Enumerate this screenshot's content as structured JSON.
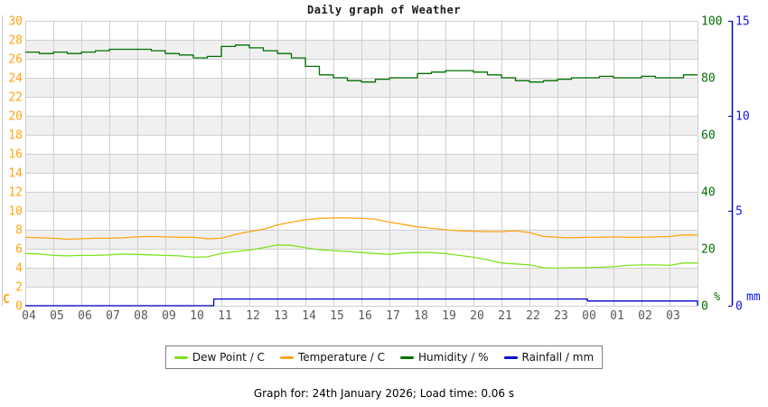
{
  "page": {
    "title": "Daily graph of Weather",
    "footer": "Graph for: 24th January 2026; Load time: 0.06 s"
  },
  "colors": {
    "background": "#ffffff",
    "grid": "#cfcfcf",
    "band": "#f0f0f0",
    "axis_left_labels": "#ffa513",
    "axis_right_labels": "#006f00",
    "axis_far_right_labels": "#1515e8",
    "x_labels": "#5a5a5a",
    "title_text": "#1a1a1a",
    "legend_border": "#7f7f7f",
    "left_edge_line": "#c8c8c8",
    "dew_point": "#7fe21f",
    "temperature": "#ffa513",
    "humidity": "#006f00",
    "rainfall": "#0000cc"
  },
  "chart_data": {
    "type": "line",
    "title": "Daily graph of Weather",
    "footer": "Graph for: 24th January 2026; Load time: 0.06 s",
    "legend_position": "bottom",
    "grid": true,
    "x_axis": {
      "hours": 24,
      "start_label": "04",
      "tick_labels": [
        "04",
        "05",
        "06",
        "07",
        "08",
        "09",
        "10",
        "11",
        "12",
        "13",
        "14",
        "15",
        "16",
        "17",
        "18",
        "19",
        "20",
        "21",
        "22",
        "23",
        "00",
        "01",
        "02",
        "03"
      ]
    },
    "axes": {
      "temperature": {
        "side": "left",
        "unit": "C",
        "min": 0,
        "max": 30,
        "tick_step": 2,
        "label_color": "#ffa513"
      },
      "humidity": {
        "side": "right",
        "unit": "%",
        "min": 0,
        "max": 100,
        "tick_step": 20,
        "label_color": "#006f00"
      },
      "rainfall": {
        "side": "far-right",
        "unit": "mm",
        "min": 0,
        "max": 15,
        "tick_step": 5,
        "label_color": "#1515e8",
        "axis_line_color": "#0000cc"
      }
    },
    "shaded_bands_temperature": [
      [
        2,
        4
      ],
      [
        6,
        8
      ],
      [
        10,
        12
      ],
      [
        14,
        16
      ],
      [
        18,
        20
      ],
      [
        22,
        24
      ],
      [
        26,
        28
      ]
    ],
    "series": [
      {
        "name": "Dew Point / C",
        "axis": "temperature",
        "color": "#7fe21f",
        "step": false,
        "x_step_hours": 0.5,
        "values": [
          5.5,
          5.45,
          5.3,
          5.25,
          5.3,
          5.3,
          5.35,
          5.45,
          5.4,
          5.35,
          5.3,
          5.25,
          5.1,
          5.15,
          5.5,
          5.7,
          5.85,
          6.1,
          6.4,
          6.35,
          6.1,
          5.9,
          5.8,
          5.7,
          5.6,
          5.5,
          5.4,
          5.55,
          5.6,
          5.6,
          5.5,
          5.3,
          5.1,
          4.85,
          4.5,
          4.4,
          4.3,
          4.0,
          3.95,
          4.0,
          4.0,
          4.05,
          4.1,
          4.25,
          4.3,
          4.3,
          4.25,
          4.5
        ]
      },
      {
        "name": "Temperature / C",
        "axis": "temperature",
        "color": "#ffa513",
        "step": false,
        "x_step_hours": 0.5,
        "values": [
          7.2,
          7.15,
          7.1,
          7.0,
          7.05,
          7.1,
          7.1,
          7.15,
          7.25,
          7.3,
          7.25,
          7.2,
          7.2,
          7.05,
          7.1,
          7.5,
          7.8,
          8.05,
          8.5,
          8.8,
          9.05,
          9.2,
          9.25,
          9.25,
          9.2,
          9.1,
          8.8,
          8.55,
          8.3,
          8.15,
          8.0,
          7.9,
          7.85,
          7.8,
          7.8,
          7.9,
          7.7,
          7.3,
          7.2,
          7.15,
          7.2,
          7.2,
          7.25,
          7.2,
          7.2,
          7.25,
          7.3,
          7.45
        ]
      },
      {
        "name": "Humidity / %",
        "axis": "humidity",
        "color": "#006f00",
        "step": true,
        "x_step_hours": 0.5,
        "values": [
          89,
          88.5,
          89,
          88.5,
          89,
          89.5,
          90,
          90,
          90,
          89.5,
          88.5,
          88,
          87,
          87.5,
          91,
          91.5,
          90.5,
          89.5,
          88.5,
          87,
          84,
          81,
          80,
          79,
          78.5,
          79.5,
          80,
          80,
          81.5,
          82,
          82.5,
          82.5,
          82,
          81,
          80,
          79,
          78.5,
          79,
          79.5,
          80,
          80,
          80.5,
          80,
          80,
          80.5,
          80,
          80,
          81
        ]
      },
      {
        "name": "Rainfall / mm",
        "axis": "rainfall",
        "color": "#0000cc",
        "step": true,
        "close_to_zero": true,
        "points": {
          "x_hours": [
            0,
            6.73,
            20.07,
            24
          ],
          "values": [
            0,
            0.35,
            0.25,
            0.25
          ]
        }
      }
    ]
  }
}
